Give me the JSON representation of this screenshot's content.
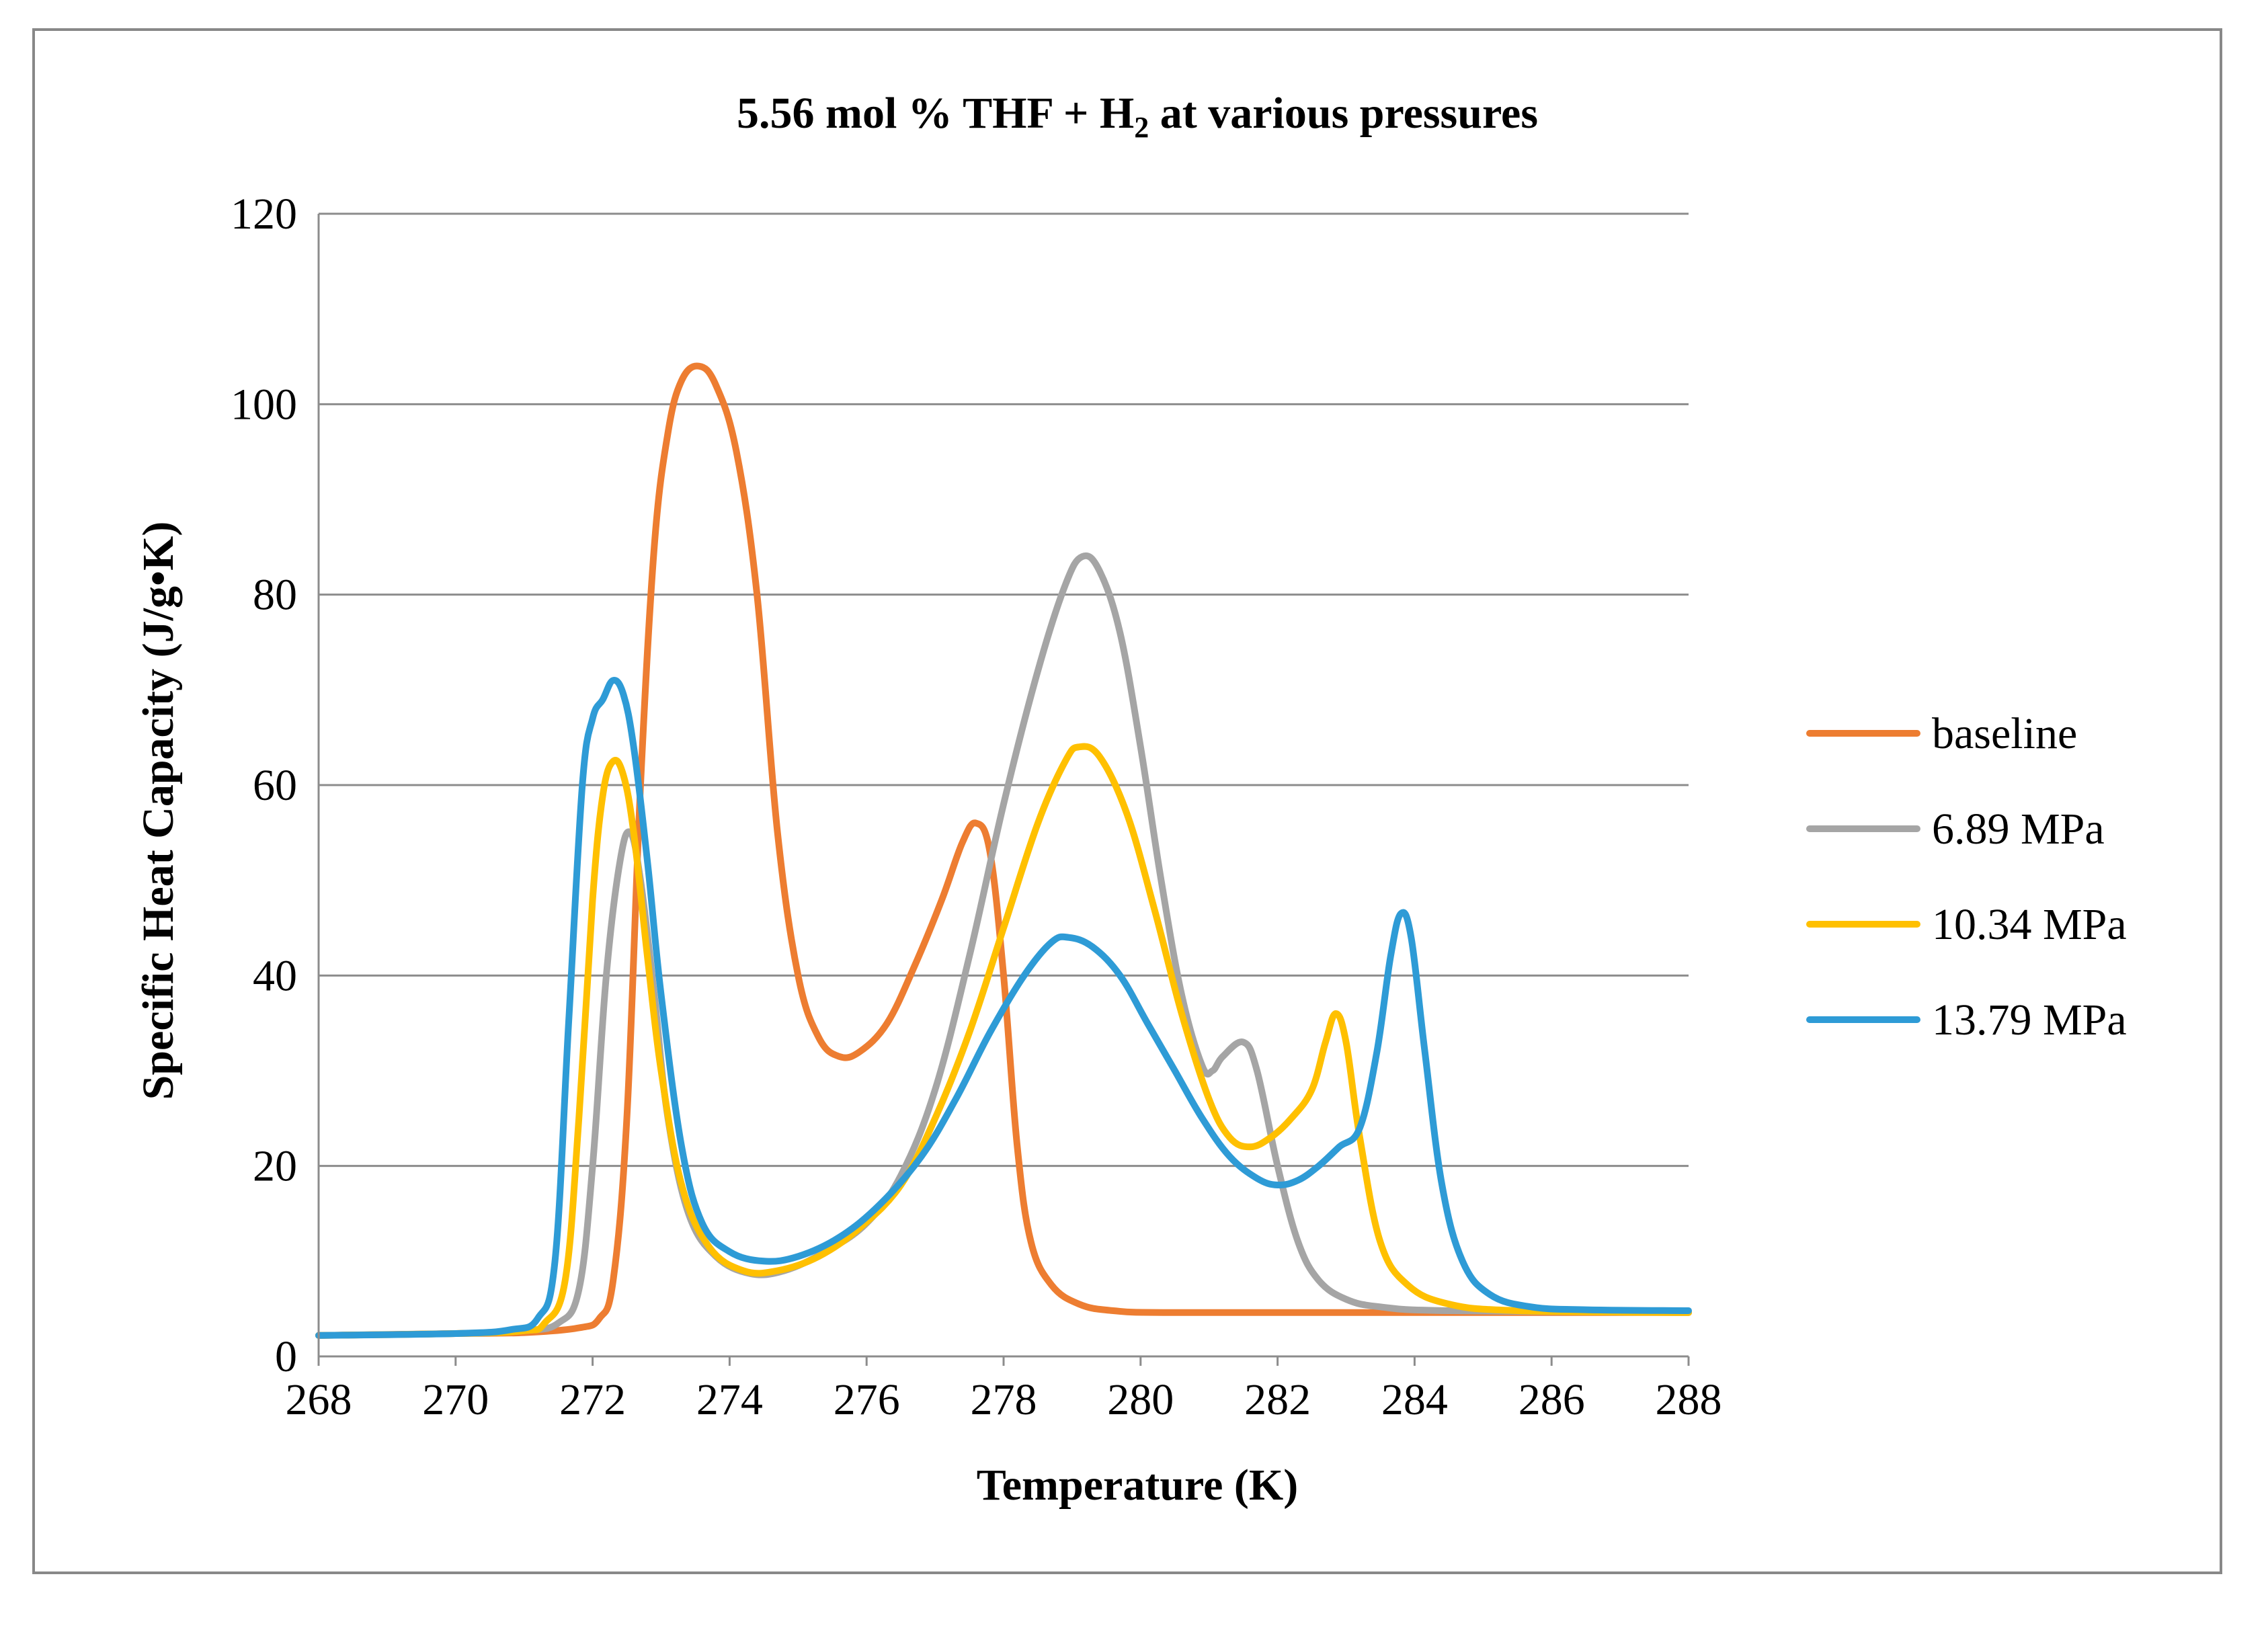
{
  "chart_data": {
    "type": "line",
    "title": "5.56 mol % THF + H",
    "title_subscript": "2",
    "title_suffix": " at various pressures",
    "xlabel": "Temperature (K)",
    "ylabel": "Specific Heat Capacity (J/g•K)",
    "xlim": [
      268,
      288
    ],
    "ylim": [
      0,
      120
    ],
    "x_ticks": [
      268,
      270,
      272,
      274,
      276,
      278,
      280,
      282,
      284,
      286,
      288
    ],
    "y_ticks": [
      0,
      20,
      40,
      60,
      80,
      100,
      120
    ],
    "grid": "horizontal",
    "legend_position": "right",
    "series": [
      {
        "name": "baseline",
        "color": "#ED7D31",
        "points": [
          [
            268,
            2.2
          ],
          [
            270,
            2.4
          ],
          [
            271,
            2.5
          ],
          [
            271.8,
            3
          ],
          [
            272.1,
            4
          ],
          [
            272.3,
            8
          ],
          [
            272.5,
            25
          ],
          [
            272.7,
            60
          ],
          [
            272.9,
            85
          ],
          [
            273.1,
            97
          ],
          [
            273.3,
            102.5
          ],
          [
            273.55,
            104
          ],
          [
            273.8,
            102
          ],
          [
            274.1,
            95
          ],
          [
            274.4,
            80
          ],
          [
            274.7,
            55
          ],
          [
            275.0,
            40
          ],
          [
            275.3,
            33.5
          ],
          [
            275.6,
            31.5
          ],
          [
            275.9,
            32
          ],
          [
            276.3,
            35
          ],
          [
            276.7,
            41
          ],
          [
            277.1,
            48
          ],
          [
            277.4,
            54
          ],
          [
            277.6,
            56
          ],
          [
            277.8,
            53
          ],
          [
            278.0,
            40
          ],
          [
            278.2,
            22
          ],
          [
            278.4,
            12
          ],
          [
            278.7,
            7.5
          ],
          [
            279.1,
            5.5
          ],
          [
            279.6,
            4.8
          ],
          [
            280.5,
            4.6
          ],
          [
            284,
            4.6
          ],
          [
            288,
            4.6
          ]
        ]
      },
      {
        "name": "6.89 MPa",
        "color": "#A5A5A5",
        "points": [
          [
            268,
            2.2
          ],
          [
            270,
            2.4
          ],
          [
            271,
            2.7
          ],
          [
            271.5,
            3.5
          ],
          [
            271.8,
            7
          ],
          [
            272.0,
            20
          ],
          [
            272.2,
            40
          ],
          [
            272.4,
            52
          ],
          [
            272.55,
            55
          ],
          [
            272.7,
            50
          ],
          [
            272.9,
            38
          ],
          [
            273.1,
            25
          ],
          [
            273.4,
            15
          ],
          [
            273.8,
            10.5
          ],
          [
            274.3,
            8.7
          ],
          [
            274.8,
            9
          ],
          [
            275.4,
            11
          ],
          [
            276.0,
            14
          ],
          [
            276.5,
            19
          ],
          [
            277.0,
            28
          ],
          [
            277.5,
            42
          ],
          [
            278.0,
            58
          ],
          [
            278.5,
            72
          ],
          [
            278.9,
            81
          ],
          [
            279.15,
            84
          ],
          [
            279.4,
            82.5
          ],
          [
            279.7,
            76
          ],
          [
            280.0,
            64
          ],
          [
            280.3,
            50
          ],
          [
            280.6,
            38
          ],
          [
            280.9,
            30.5
          ],
          [
            281.05,
            30
          ],
          [
            281.2,
            31.5
          ],
          [
            281.5,
            33
          ],
          [
            281.7,
            30
          ],
          [
            282.0,
            20
          ],
          [
            282.3,
            12
          ],
          [
            282.6,
            8
          ],
          [
            283.0,
            6
          ],
          [
            283.5,
            5.2
          ],
          [
            284.5,
            4.8
          ],
          [
            288,
            4.6
          ]
        ]
      },
      {
        "name": "10.34 MPa",
        "color": "#FFC000",
        "points": [
          [
            268,
            2.2
          ],
          [
            270,
            2.4
          ],
          [
            271,
            2.7
          ],
          [
            271.3,
            3.5
          ],
          [
            271.6,
            8
          ],
          [
            271.8,
            25
          ],
          [
            272.0,
            48
          ],
          [
            272.15,
            59
          ],
          [
            272.3,
            62.5
          ],
          [
            272.45,
            61
          ],
          [
            272.6,
            55
          ],
          [
            272.8,
            42
          ],
          [
            273.0,
            30
          ],
          [
            273.3,
            18
          ],
          [
            273.7,
            11.5
          ],
          [
            274.2,
            9
          ],
          [
            274.7,
            9
          ],
          [
            275.3,
            10.5
          ],
          [
            275.9,
            13.5
          ],
          [
            276.5,
            18
          ],
          [
            277.0,
            25
          ],
          [
            277.5,
            34
          ],
          [
            278.0,
            45
          ],
          [
            278.5,
            56
          ],
          [
            278.9,
            62.5
          ],
          [
            279.1,
            64
          ],
          [
            279.4,
            63
          ],
          [
            279.8,
            57
          ],
          [
            280.2,
            47
          ],
          [
            280.6,
            36
          ],
          [
            281.0,
            27
          ],
          [
            281.3,
            23
          ],
          [
            281.6,
            22
          ],
          [
            281.9,
            23
          ],
          [
            282.2,
            25
          ],
          [
            282.5,
            28
          ],
          [
            282.7,
            33
          ],
          [
            282.85,
            36
          ],
          [
            283.0,
            33
          ],
          [
            283.2,
            23
          ],
          [
            283.5,
            12
          ],
          [
            283.9,
            7.5
          ],
          [
            284.5,
            5.5
          ],
          [
            285.5,
            4.8
          ],
          [
            288,
            4.6
          ]
        ]
      },
      {
        "name": "13.79 MPa",
        "color": "#2E9BD6",
        "points": [
          [
            268,
            2.2
          ],
          [
            270,
            2.4
          ],
          [
            270.8,
            2.8
          ],
          [
            271.2,
            4
          ],
          [
            271.45,
            10
          ],
          [
            271.65,
            35
          ],
          [
            271.85,
            60
          ],
          [
            272.0,
            67
          ],
          [
            272.15,
            69
          ],
          [
            272.3,
            71
          ],
          [
            272.45,
            69.5
          ],
          [
            272.6,
            64
          ],
          [
            272.8,
            52
          ],
          [
            273.0,
            38
          ],
          [
            273.3,
            22
          ],
          [
            273.6,
            14
          ],
          [
            274.0,
            11
          ],
          [
            274.5,
            10
          ],
          [
            275.0,
            10.5
          ],
          [
            275.6,
            12.5
          ],
          [
            276.2,
            16
          ],
          [
            276.8,
            21
          ],
          [
            277.3,
            27
          ],
          [
            277.8,
            34
          ],
          [
            278.3,
            40
          ],
          [
            278.7,
            43.5
          ],
          [
            278.95,
            44
          ],
          [
            279.3,
            43
          ],
          [
            279.7,
            40
          ],
          [
            280.1,
            35
          ],
          [
            280.5,
            30
          ],
          [
            280.9,
            25
          ],
          [
            281.3,
            21
          ],
          [
            281.7,
            18.7
          ],
          [
            282.0,
            18
          ],
          [
            282.3,
            18.5
          ],
          [
            282.6,
            20
          ],
          [
            282.9,
            22
          ],
          [
            283.2,
            24
          ],
          [
            283.45,
            32
          ],
          [
            283.65,
            42
          ],
          [
            283.8,
            46.5
          ],
          [
            283.95,
            44
          ],
          [
            284.15,
            32
          ],
          [
            284.4,
            18
          ],
          [
            284.7,
            10
          ],
          [
            285.1,
            6.5
          ],
          [
            285.7,
            5.2
          ],
          [
            286.5,
            4.9
          ],
          [
            288,
            4.8
          ]
        ]
      }
    ]
  }
}
